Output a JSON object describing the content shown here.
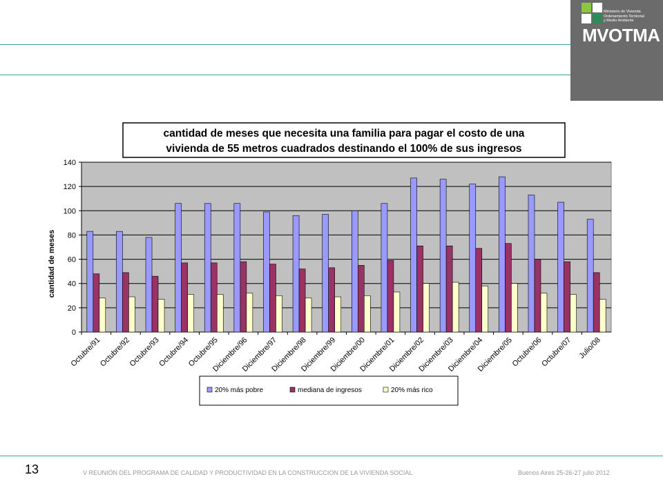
{
  "header": {
    "logo_text": "MVOTMA",
    "ministry_lines": [
      "Ministerio de Vivienda",
      "Ordenamiento Territorial",
      "y Medio Ambiente"
    ]
  },
  "footer": {
    "page_number": "13",
    "left_text": "V REUNIÓN DEL PROGRAMA DE CALIDAD Y PRODUCTIVIDAD EN LA CONSTRUCCION DE LA VIVIENDA SOCIAL",
    "right_text": "Buenos Aires 25-26-27 julio 2012"
  },
  "colors": {
    "accent_line": "#3aa6a0",
    "plot_bg": "#c0c0c0",
    "series_1": "#9999ff",
    "series_2": "#993366",
    "series_3": "#ffffcc"
  },
  "chart_data": {
    "type": "bar",
    "title_lines": [
      "cantidad de meses que necesita una familia para pagar el costo de una",
      "vivienda de 55 metros cuadrados destinando el 100% de sus ingresos"
    ],
    "xlabel": "",
    "ylabel": "cantidad  de meses",
    "ylim": [
      0,
      140
    ],
    "yticks": [
      0,
      20,
      40,
      60,
      80,
      100,
      120,
      140
    ],
    "grid": true,
    "legend_position": "bottom",
    "categories": [
      "Octubre/91",
      "Octubre/92",
      "Octubre/93",
      "Octubre/94",
      "Octubre/95",
      "Diciembre/96",
      "Diciembre/97",
      "Diciembre/98",
      "Diciembre/99",
      "Diciembre/00",
      "Diciembre/01",
      "Diciembre/02",
      "Diciembre/03",
      "Diciembre/04",
      "Diciembre/05",
      "Octubre/06",
      "Octubre/07",
      "Julio/08"
    ],
    "series": [
      {
        "name": "20% más pobre",
        "values": [
          83,
          83,
          78,
          106,
          106,
          106,
          99,
          96,
          97,
          100,
          106,
          127,
          126,
          122,
          128,
          113,
          107,
          93
        ]
      },
      {
        "name": "mediana de ingresos",
        "values": [
          48,
          49,
          46,
          57,
          57,
          58,
          56,
          52,
          53,
          55,
          59,
          71,
          71,
          69,
          73,
          60,
          58,
          49
        ]
      },
      {
        "name": "20% más rico",
        "values": [
          28,
          29,
          27,
          31,
          31,
          32,
          30,
          28,
          29,
          30,
          33,
          40,
          41,
          38,
          40,
          32,
          31,
          27
        ]
      }
    ]
  }
}
